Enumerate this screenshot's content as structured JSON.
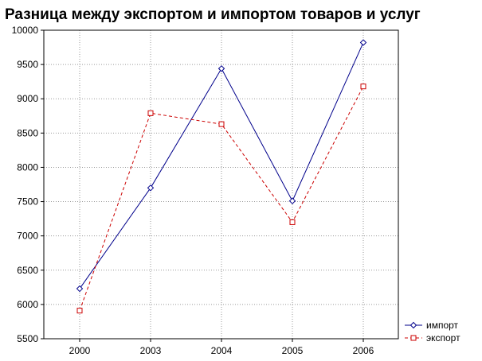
{
  "chart_data": {
    "type": "line",
    "title": "Разница между экспортом и импортом товаров и услуг",
    "categories": [
      "2000",
      "2003",
      "2004",
      "2005",
      "2006"
    ],
    "ylim": [
      5500,
      10000
    ],
    "yticks": [
      5500,
      6000,
      6500,
      7000,
      7500,
      8000,
      8500,
      9000,
      9500,
      10000
    ],
    "grid": true,
    "legend_position": "bottom-right",
    "series": [
      {
        "name": "импорт",
        "values": [
          6230,
          7700,
          9440,
          7510,
          9820
        ],
        "color": "#00008b",
        "dash": "solid",
        "marker": "diamond"
      },
      {
        "name": "экспорт",
        "values": [
          5910,
          8790,
          8630,
          7200,
          9180
        ],
        "color": "#cc0000",
        "dash": "dashed",
        "marker": "square"
      }
    ]
  }
}
